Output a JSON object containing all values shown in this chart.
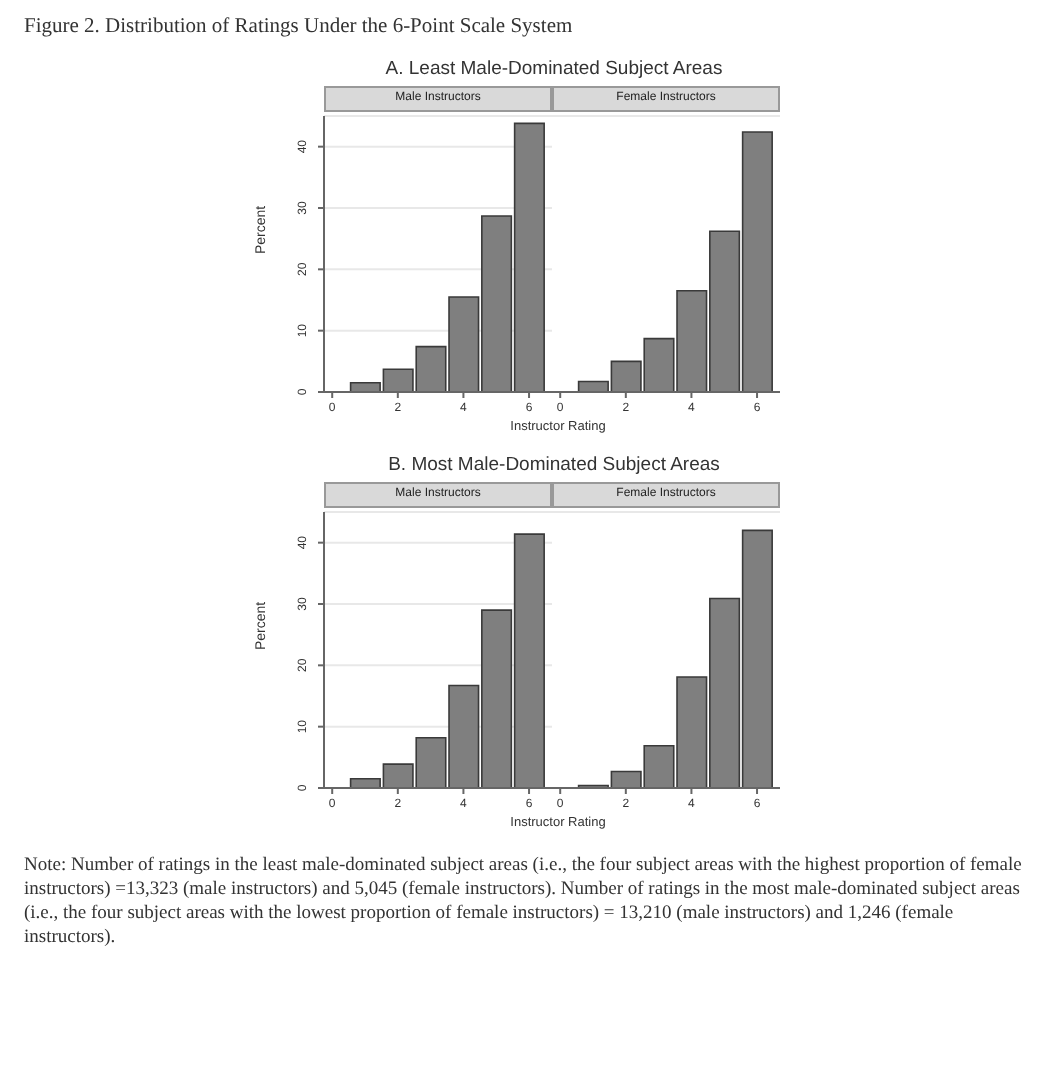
{
  "chart_data": [
    {
      "type": "histogram",
      "title": "Male Instructors",
      "xlabel": "Instructor Rating",
      "ylabel": "Percent",
      "annotations": [
        "Figure 2. Distribution of Ratings Under the 6-Point Scale System",
        "A. Least Male-Dominated Subject Areas"
      ],
      "bins": [
        0.5,
        1.5,
        2.5,
        3.5,
        4.5,
        5.5,
        6.5
      ],
      "values": [
        1.5,
        3.7,
        7.4,
        15.5,
        28.7,
        43.8
      ],
      "color": "#7f7f7f",
      "xlim": [
        -0.25,
        6.7
      ],
      "xticks": [
        0,
        2,
        4,
        6
      ],
      "ylim": [
        0,
        45
      ],
      "yticks": [
        0,
        10,
        20,
        30,
        40
      ],
      "grid": "y"
    },
    {
      "type": "histogram",
      "title": "Female Instructors",
      "bins": [
        0.5,
        1.5,
        2.5,
        3.5,
        4.5,
        5.5,
        6.5
      ],
      "values": [
        1.7,
        5.0,
        8.7,
        16.5,
        26.2,
        42.4
      ],
      "color": "#7f7f7f",
      "xlim": [
        -0.25,
        6.7
      ],
      "xticks": [
        0,
        2,
        4,
        6
      ],
      "ylim": [
        0,
        45
      ],
      "yticks": [
        0,
        10,
        20,
        30,
        40
      ],
      "grid": "y",
      "tick_labels": "x"
    },
    {
      "type": "histogram",
      "title": "Male Instructors",
      "xlabel": "Instructor Rating",
      "ylabel": "Percent",
      "annotations": [
        "B. Most Male-Dominated Subject Areas"
      ],
      "bins": [
        0.5,
        1.5,
        2.5,
        3.5,
        4.5,
        5.5,
        6.5
      ],
      "values": [
        1.5,
        3.9,
        8.2,
        16.7,
        29.0,
        41.4
      ],
      "color": "#7f7f7f",
      "xlim": [
        -0.25,
        6.7
      ],
      "xticks": [
        0,
        2,
        4,
        6
      ],
      "ylim": [
        0,
        45
      ],
      "yticks": [
        0,
        10,
        20,
        30,
        40
      ],
      "grid": "y"
    },
    {
      "type": "histogram",
      "title": "Female Instructors",
      "annotations": [
        "Note: Number of ratings in the least male-dominated subject areas (i.e., the four subject areas with the highest proportion of female instructors) =13,323 (male instructors) and 5,045 (female instructors). Number of ratings in the most male-dominated subject areas (i.e., the four subject areas with the lowest proportion of female instructors) = 13,210 (male instructors) and 1,246 (female instructors)."
      ],
      "bins": [
        0.5,
        1.5,
        2.5,
        3.5,
        4.5,
        5.5,
        6.5
      ],
      "values": [
        0.4,
        2.7,
        6.9,
        18.1,
        30.9,
        42.0
      ],
      "color": "#7f7f7f",
      "xlim": [
        -0.25,
        6.7
      ],
      "xticks": [
        0,
        2,
        4,
        6
      ],
      "ylim": [
        0,
        45
      ],
      "yticks": [
        0,
        10,
        20,
        30,
        40
      ],
      "grid": "y",
      "tick_labels": "x"
    }
  ]
}
